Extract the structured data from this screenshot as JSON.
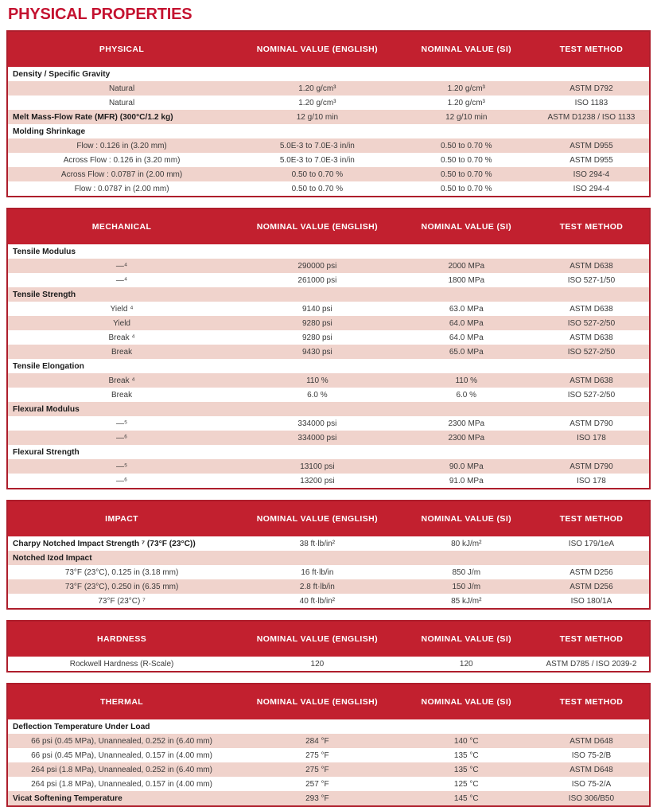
{
  "title": "PHYSICAL PROPERTIES",
  "colors": {
    "header_bg": "#c2202f",
    "header_text": "#ffffff",
    "stripe": "#f0d3cc",
    "border": "#ae1e2c",
    "title": "#c41230",
    "text": "#3b3b3b"
  },
  "tables": [
    {
      "name": "PHYSICAL",
      "columns": [
        "PHYSICAL",
        "NOMINAL VALUE (ENGLISH)",
        "NOMINAL VALUE (SI)",
        "TEST METHOD"
      ],
      "rows": [
        {
          "style": "section",
          "label": "Density / Specific Gravity"
        },
        {
          "style": "plain",
          "label": "Natural",
          "english": "1.20 g/cm³",
          "si": "1.20 g/cm³",
          "method": "ASTM D792"
        },
        {
          "style": "plain",
          "label": "Natural",
          "english": "1.20 g/cm³",
          "si": "1.20 g/cm³",
          "method": "ISO 1183"
        },
        {
          "style": "bold",
          "label": "Melt Mass-Flow Rate (MFR) (300°C/1.2 kg)",
          "english": "12 g/10 min",
          "si": "12 g/10 min",
          "method": "ASTM D1238 / ISO 1133"
        },
        {
          "style": "section",
          "label": "Molding Shrinkage"
        },
        {
          "style": "plain",
          "label": "Flow : 0.126 in (3.20 mm)",
          "english": "5.0E-3 to 7.0E-3 in/in",
          "si": "0.50 to 0.70 %",
          "method": "ASTM D955"
        },
        {
          "style": "plain",
          "label": "Across Flow : 0.126 in (3.20 mm)",
          "english": "5.0E-3 to 7.0E-3 in/in",
          "si": "0.50 to 0.70 %",
          "method": "ASTM D955"
        },
        {
          "style": "plain",
          "label": "Across Flow : 0.0787 in (2.00 mm)",
          "english": "0.50 to 0.70 %",
          "si": "0.50 to 0.70 %",
          "method": "ISO 294-4"
        },
        {
          "style": "plain",
          "label": "Flow : 0.0787 in (2.00 mm)",
          "english": "0.50 to 0.70 %",
          "si": "0.50 to 0.70 %",
          "method": "ISO 294-4"
        }
      ]
    },
    {
      "name": "MECHANICAL",
      "columns": [
        "MECHANICAL",
        "NOMINAL VALUE (ENGLISH)",
        "NOMINAL VALUE (SI)",
        "TEST METHOD"
      ],
      "rows": [
        {
          "style": "section",
          "label": "Tensile Modulus"
        },
        {
          "style": "plain",
          "label": "—⁴",
          "english": "290000 psi",
          "si": "2000 MPa",
          "method": "ASTM D638"
        },
        {
          "style": "plain",
          "label": "—⁴",
          "english": "261000 psi",
          "si": "1800 MPa",
          "method": "ISO 527-1/50"
        },
        {
          "style": "section",
          "label": "Tensile Strength"
        },
        {
          "style": "plain",
          "label": "Yield ⁴",
          "english": "9140 psi",
          "si": "63.0 MPa",
          "method": "ASTM D638"
        },
        {
          "style": "plain",
          "label": "Yield",
          "english": "9280 psi",
          "si": "64.0 MPa",
          "method": "ISO 527-2/50"
        },
        {
          "style": "plain",
          "label": "Break ⁴",
          "english": "9280 psi",
          "si": "64.0 MPa",
          "method": "ASTM D638"
        },
        {
          "style": "plain",
          "label": "Break",
          "english": "9430 psi",
          "si": "65.0 MPa",
          "method": "ISO 527-2/50"
        },
        {
          "style": "section",
          "label": "Tensile Elongation"
        },
        {
          "style": "plain",
          "label": "Break ⁴",
          "english": "110 %",
          "si": "110 %",
          "method": "ASTM D638"
        },
        {
          "style": "plain",
          "label": "Break",
          "english": "6.0 %",
          "si": "6.0 %",
          "method": "ISO 527-2/50"
        },
        {
          "style": "section",
          "label": "Flexural Modulus"
        },
        {
          "style": "plain",
          "label": "—⁵",
          "english": "334000 psi",
          "si": "2300 MPa",
          "method": "ASTM D790"
        },
        {
          "style": "plain",
          "label": "—⁶",
          "english": "334000 psi",
          "si": "2300 MPa",
          "method": "ISO 178"
        },
        {
          "style": "section",
          "label": "Flexural Strength"
        },
        {
          "style": "plain",
          "label": "—⁵",
          "english": "13100 psi",
          "si": "90.0 MPa",
          "method": "ASTM D790"
        },
        {
          "style": "plain",
          "label": "—⁶",
          "english": "13200 psi",
          "si": "91.0 MPa",
          "method": "ISO 178"
        }
      ]
    },
    {
      "name": "IMPACT",
      "columns": [
        "IMPACT",
        "NOMINAL VALUE (ENGLISH)",
        "NOMINAL VALUE (SI)",
        "TEST METHOD"
      ],
      "rows": [
        {
          "style": "bold",
          "label": "Charpy Notched Impact Strength ⁷ (73°F (23°C))",
          "english": "38 ft·lb/in²",
          "si": "80 kJ/m²",
          "method": "ISO 179/1eA"
        },
        {
          "style": "section",
          "label": "Notched Izod Impact"
        },
        {
          "style": "plain",
          "label": "73°F (23°C), 0.125 in (3.18 mm)",
          "english": "16 ft·lb/in",
          "si": "850 J/m",
          "method": "ASTM D256"
        },
        {
          "style": "plain",
          "label": "73°F (23°C), 0.250 in (6.35 mm)",
          "english": "2.8 ft·lb/in",
          "si": "150 J/m",
          "method": "ASTM D256"
        },
        {
          "style": "plain",
          "label": "73°F (23°C) ⁷",
          "english": "40 ft·lb/in²",
          "si": "85 kJ/m²",
          "method": "ISO 180/1A"
        }
      ]
    },
    {
      "name": "HARDNESS",
      "columns": [
        "HARDNESS",
        "NOMINAL VALUE (ENGLISH)",
        "NOMINAL VALUE (SI)",
        "TEST METHOD"
      ],
      "rows": [
        {
          "style": "plain",
          "label": "Rockwell Hardness (R-Scale)",
          "english": "120",
          "si": "120",
          "method": "ASTM D785 / ISO 2039-2"
        }
      ]
    },
    {
      "name": "THERMAL",
      "columns": [
        "THERMAL",
        "NOMINAL VALUE (ENGLISH)",
        "NOMINAL VALUE (SI)",
        "TEST METHOD"
      ],
      "rows": [
        {
          "style": "section",
          "label": "Deflection Temperature Under Load"
        },
        {
          "style": "plain",
          "label": "66 psi (0.45 MPa), Unannealed, 0.252 in (6.40 mm)",
          "english": "284 °F",
          "si": "140 °C",
          "method": "ASTM D648"
        },
        {
          "style": "plain",
          "label": "66 psi (0.45 MPa), Unannealed, 0.157 in (4.00 mm)",
          "english": "275 °F",
          "si": "135 °C",
          "method": "ISO 75-2/B"
        },
        {
          "style": "plain",
          "label": "264 psi (1.8 MPa), Unannealed, 0.252 in (6.40 mm)",
          "english": "275 °F",
          "si": "135 °C",
          "method": "ASTM D648"
        },
        {
          "style": "plain",
          "label": "264 psi (1.8 MPa), Unannealed, 0.157 in (4.00 mm)",
          "english": "257 °F",
          "si": "125 °C",
          "method": "ISO 75-2/A"
        },
        {
          "style": "bold",
          "label": "Vicat Softening Temperature",
          "english": "293 °F",
          "si": "145 °C",
          "method": "ISO 306/B50"
        }
      ]
    }
  ]
}
